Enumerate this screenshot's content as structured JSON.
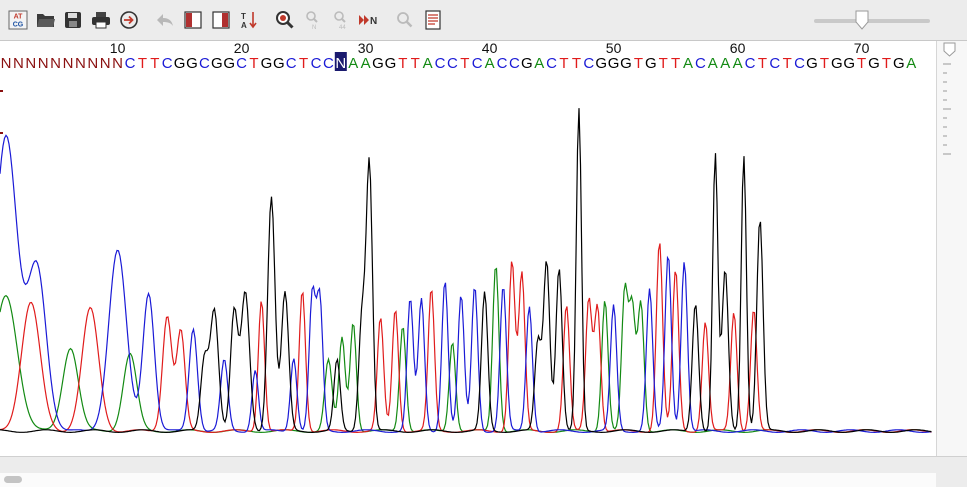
{
  "toolbar": {
    "atcg_icon_text": [
      "AT",
      "CG"
    ],
    "tools": [
      {
        "name": "atcg-logo-icon"
      },
      {
        "name": "open-folder-icon"
      },
      {
        "name": "save-icon"
      },
      {
        "name": "print-icon"
      },
      {
        "name": "navigate-arrow-icon"
      },
      {
        "name": "undo-icon"
      },
      {
        "name": "trim-left-icon"
      },
      {
        "name": "trim-right-icon"
      },
      {
        "name": "sort-az-icon"
      },
      {
        "name": "zoom-icon"
      },
      {
        "name": "find-icon"
      },
      {
        "name": "find-next-icon"
      },
      {
        "name": "next-n-icon"
      },
      {
        "name": "search-icon"
      },
      {
        "name": "notes-icon"
      }
    ],
    "next_n_label": "N",
    "zoom_level": 0.4
  },
  "colors": {
    "A": "#138a13",
    "C": "#1a1ad6",
    "G": "#000000",
    "T": "#e01c1c",
    "N": "#8a1010",
    "selection_bg": "#1a1a6e",
    "selection_fg": "#ffffff"
  },
  "ruler": {
    "ticks": [
      {
        "label": "10",
        "base": 10
      },
      {
        "label": "20",
        "base": 20
      },
      {
        "label": "30",
        "base": 30
      },
      {
        "label": "40",
        "base": 40
      },
      {
        "label": "50",
        "base": 50
      },
      {
        "label": "60",
        "base": 60
      },
      {
        "label": "70",
        "base": 70
      }
    ]
  },
  "sequence": {
    "bases": [
      {
        "b": "N"
      },
      {
        "b": "N"
      },
      {
        "b": "N"
      },
      {
        "b": "N"
      },
      {
        "b": "N"
      },
      {
        "b": "N"
      },
      {
        "b": "N"
      },
      {
        "b": "N"
      },
      {
        "b": "N"
      },
      {
        "b": "N"
      },
      {
        "b": "C"
      },
      {
        "b": "T"
      },
      {
        "b": "T"
      },
      {
        "b": "C"
      },
      {
        "b": "G"
      },
      {
        "b": "G"
      },
      {
        "b": "C"
      },
      {
        "b": "G"
      },
      {
        "b": "G"
      },
      {
        "b": "C"
      },
      {
        "b": "T"
      },
      {
        "b": "G"
      },
      {
        "b": "G"
      },
      {
        "b": "C"
      },
      {
        "b": "T"
      },
      {
        "b": "C"
      },
      {
        "b": "C"
      },
      {
        "b": "N",
        "selected": true
      },
      {
        "b": "A"
      },
      {
        "b": "A"
      },
      {
        "b": "G"
      },
      {
        "b": "G"
      },
      {
        "b": "T"
      },
      {
        "b": "T"
      },
      {
        "b": "A"
      },
      {
        "b": "C"
      },
      {
        "b": "C"
      },
      {
        "b": "T"
      },
      {
        "b": "C"
      },
      {
        "b": "A"
      },
      {
        "b": "C"
      },
      {
        "b": "C"
      },
      {
        "b": "G"
      },
      {
        "b": "A"
      },
      {
        "b": "C"
      },
      {
        "b": "T"
      },
      {
        "b": "T"
      },
      {
        "b": "C"
      },
      {
        "b": "G"
      },
      {
        "b": "G"
      },
      {
        "b": "G"
      },
      {
        "b": "T"
      },
      {
        "b": "G"
      },
      {
        "b": "T"
      },
      {
        "b": "T"
      },
      {
        "b": "A"
      },
      {
        "b": "C"
      },
      {
        "b": "A"
      },
      {
        "b": "A"
      },
      {
        "b": "A"
      },
      {
        "b": "C"
      },
      {
        "b": "T"
      },
      {
        "b": "C"
      },
      {
        "b": "T"
      },
      {
        "b": "C"
      },
      {
        "b": "G"
      },
      {
        "b": "T"
      },
      {
        "b": "G"
      },
      {
        "b": "G"
      },
      {
        "b": "T"
      },
      {
        "b": "G"
      },
      {
        "b": "T"
      },
      {
        "b": "G"
      },
      {
        "b": "A"
      }
    ]
  },
  "chromatogram": {
    "peaks": [
      {
        "c": "C",
        "b": 0,
        "h": 0.92,
        "w": 2.2
      },
      {
        "c": "C",
        "b": 2.5,
        "h": 0.5,
        "w": 1.8
      },
      {
        "c": "A",
        "b": 0,
        "h": 0.42,
        "w": 2.2
      },
      {
        "c": "T",
        "b": 2,
        "h": 0.4,
        "w": 1.8
      },
      {
        "c": "T",
        "b": 6.8,
        "h": 0.38,
        "w": 1.6
      },
      {
        "c": "A",
        "b": 5.2,
        "h": 0.26,
        "w": 1.5
      },
      {
        "c": "C",
        "b": 9,
        "h": 0.56,
        "w": 1.7
      },
      {
        "c": "A",
        "b": 10,
        "h": 0.24,
        "w": 1.3
      },
      {
        "c": "C",
        "b": 11.5,
        "h": 0.43,
        "w": 1.1
      },
      {
        "c": "T",
        "b": 13,
        "h": 0.36,
        "w": 0.9
      },
      {
        "c": "T",
        "b": 14.1,
        "h": 0.31,
        "w": 0.8
      },
      {
        "c": "C",
        "b": 15.1,
        "h": 0.32,
        "w": 0.8
      },
      {
        "c": "G",
        "b": 16.0,
        "h": 0.22,
        "w": 0.7
      },
      {
        "c": "G",
        "b": 16.8,
        "h": 0.38,
        "w": 0.8
      },
      {
        "c": "C",
        "b": 17.6,
        "h": 0.22,
        "w": 0.7
      },
      {
        "c": "G",
        "b": 18.4,
        "h": 0.37,
        "w": 0.7
      },
      {
        "c": "G",
        "b": 19.3,
        "h": 0.43,
        "w": 0.8
      },
      {
        "c": "C",
        "b": 20.1,
        "h": 0.19,
        "w": 0.6
      },
      {
        "c": "T",
        "b": 20.6,
        "h": 0.41,
        "w": 0.6
      },
      {
        "c": "G",
        "b": 21.4,
        "h": 0.73,
        "w": 0.7
      },
      {
        "c": "G",
        "b": 22.5,
        "h": 0.43,
        "w": 0.7
      },
      {
        "c": "C",
        "b": 23.2,
        "h": 0.23,
        "w": 0.6
      },
      {
        "c": "T",
        "b": 23.9,
        "h": 0.44,
        "w": 0.6
      },
      {
        "c": "C",
        "b": 24.7,
        "h": 0.42,
        "w": 0.6
      },
      {
        "c": "C",
        "b": 25.3,
        "h": 0.41,
        "w": 0.6
      },
      {
        "c": "A",
        "b": 26.0,
        "h": 0.22,
        "w": 0.7
      },
      {
        "c": "G",
        "b": 26.7,
        "h": 0.22,
        "w": 0.6
      },
      {
        "c": "A",
        "b": 27.1,
        "h": 0.29,
        "w": 0.6
      },
      {
        "c": "A",
        "b": 28.0,
        "h": 0.34,
        "w": 0.6
      },
      {
        "c": "G",
        "b": 28.7,
        "h": 0.35,
        "w": 0.6
      },
      {
        "c": "G",
        "b": 29.3,
        "h": 0.83,
        "w": 0.6
      },
      {
        "c": "T",
        "b": 30.2,
        "h": 0.35,
        "w": 0.6
      },
      {
        "c": "T",
        "b": 31.4,
        "h": 0.38,
        "w": 0.6
      },
      {
        "c": "A",
        "b": 32.0,
        "h": 0.33,
        "w": 0.6
      },
      {
        "c": "C",
        "b": 32.6,
        "h": 0.41,
        "w": 0.6
      },
      {
        "c": "C",
        "b": 33.5,
        "h": 0.41,
        "w": 0.6
      },
      {
        "c": "T",
        "b": 34.3,
        "h": 0.44,
        "w": 0.6
      },
      {
        "c": "C",
        "b": 35.4,
        "h": 0.47,
        "w": 0.6
      },
      {
        "c": "A",
        "b": 36.0,
        "h": 0.28,
        "w": 0.6
      },
      {
        "c": "C",
        "b": 36.7,
        "h": 0.42,
        "w": 0.6
      },
      {
        "c": "C",
        "b": 37.8,
        "h": 0.45,
        "w": 0.6
      },
      {
        "c": "G",
        "b": 38.6,
        "h": 0.43,
        "w": 0.6
      },
      {
        "c": "A",
        "b": 39.5,
        "h": 0.52,
        "w": 0.6
      },
      {
        "c": "C",
        "b": 40.1,
        "h": 0.45,
        "w": 0.6
      },
      {
        "c": "T",
        "b": 40.8,
        "h": 0.53,
        "w": 0.6
      },
      {
        "c": "T",
        "b": 41.6,
        "h": 0.49,
        "w": 0.6
      },
      {
        "c": "C",
        "b": 42.2,
        "h": 0.39,
        "w": 0.6
      },
      {
        "c": "G",
        "b": 42.9,
        "h": 0.28,
        "w": 0.6
      },
      {
        "c": "G",
        "b": 43.6,
        "h": 0.53,
        "w": 0.6
      },
      {
        "c": "G",
        "b": 44.6,
        "h": 0.51,
        "w": 0.6
      },
      {
        "c": "T",
        "b": 45.2,
        "h": 0.39,
        "w": 0.6
      },
      {
        "c": "G",
        "b": 46.2,
        "h": 1.0,
        "w": 0.5
      },
      {
        "c": "T",
        "b": 47.0,
        "h": 0.41,
        "w": 0.6
      },
      {
        "c": "T",
        "b": 47.7,
        "h": 0.39,
        "w": 0.6
      },
      {
        "c": "A",
        "b": 48.3,
        "h": 0.41,
        "w": 0.6
      },
      {
        "c": "C",
        "b": 49.0,
        "h": 0.39,
        "w": 0.6
      },
      {
        "c": "A",
        "b": 49.9,
        "h": 0.43,
        "w": 0.6
      },
      {
        "c": "A",
        "b": 50.5,
        "h": 0.38,
        "w": 0.6
      },
      {
        "c": "A",
        "b": 51.2,
        "h": 0.4,
        "w": 0.6
      },
      {
        "c": "C",
        "b": 51.9,
        "h": 0.44,
        "w": 0.6
      },
      {
        "c": "T",
        "b": 52.7,
        "h": 0.59,
        "w": 0.6
      },
      {
        "c": "C",
        "b": 53.4,
        "h": 0.55,
        "w": 0.6
      },
      {
        "c": "T",
        "b": 54.0,
        "h": 0.5,
        "w": 0.6
      },
      {
        "c": "C",
        "b": 54.7,
        "h": 0.53,
        "w": 0.6
      },
      {
        "c": "G",
        "b": 55.6,
        "h": 0.4,
        "w": 0.6
      },
      {
        "c": "T",
        "b": 56.4,
        "h": 0.34,
        "w": 0.6
      },
      {
        "c": "G",
        "b": 57.2,
        "h": 0.86,
        "w": 0.5
      },
      {
        "c": "G",
        "b": 58.0,
        "h": 0.5,
        "w": 0.6
      },
      {
        "c": "T",
        "b": 58.7,
        "h": 0.37,
        "w": 0.6
      },
      {
        "c": "G",
        "b": 59.5,
        "h": 0.86,
        "w": 0.5
      },
      {
        "c": "T",
        "b": 60.3,
        "h": 0.38,
        "w": 0.6
      },
      {
        "c": "G",
        "b": 60.8,
        "h": 0.66,
        "w": 0.6
      }
    ]
  }
}
